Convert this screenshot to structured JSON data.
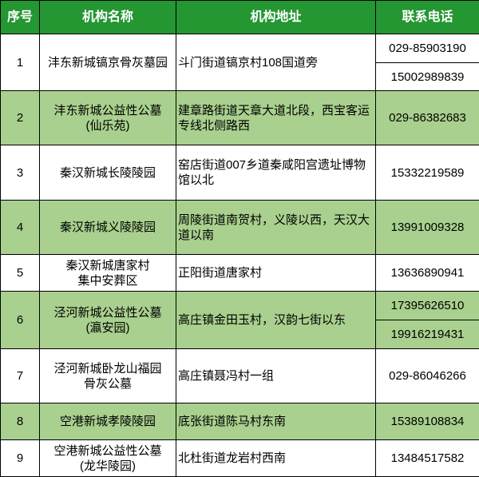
{
  "header": {
    "no": "序号",
    "name": "机构名称",
    "address": "机构地址",
    "phone": "联系电话"
  },
  "colors": {
    "header_bg": "#249632",
    "alt_row_bg": "#a9d08e"
  },
  "rows": [
    {
      "no": "1",
      "name": [
        "沣东新城镐京骨灰墓园"
      ],
      "address": "斗门街道镐京村108国道旁",
      "phones": [
        "029-85903190",
        "15002989839"
      ]
    },
    {
      "no": "2",
      "name": [
        "沣东新城公益性公墓",
        "(仙乐苑)"
      ],
      "address": "建章路街道天章大道北段，西宝客运专线北侧路西",
      "phones": [
        "029-86382683"
      ]
    },
    {
      "no": "3",
      "name": [
        "秦汉新城长陵陵园"
      ],
      "address": "窑店街道007乡道秦咸阳宫遗址博物馆以北",
      "phones": [
        "15332219589"
      ]
    },
    {
      "no": "4",
      "name": [
        "秦汉新城义陵陵园"
      ],
      "address": "周陵街道南贺村，义陵以西，天汉大道以南",
      "phones": [
        "13991009328"
      ]
    },
    {
      "no": "5",
      "name": [
        "秦汉新城唐家村",
        "集中安葬区"
      ],
      "address": "正阳街道唐家村",
      "phones": [
        "13636890941"
      ]
    },
    {
      "no": "6",
      "name": [
        "泾河新城公益性公墓",
        "(瀛安园)"
      ],
      "address": "高庄镇金田玉村，汉韵七街以东",
      "phones": [
        "17395626510",
        "19916219431"
      ]
    },
    {
      "no": "7",
      "name": [
        "泾河新城卧龙山福园",
        "骨灰公墓"
      ],
      "address": "高庄镇聂冯村一组",
      "phones": [
        "029-86046266"
      ]
    },
    {
      "no": "8",
      "name": [
        "空港新城孝陵陵园"
      ],
      "address": "底张街道陈马村东南",
      "phones": [
        "15389108834"
      ]
    },
    {
      "no": "9",
      "name": [
        "空港新城公益性公墓",
        "(龙华陵园)"
      ],
      "address": "北杜街道龙岩村西南",
      "phones": [
        "13484517582"
      ]
    }
  ]
}
